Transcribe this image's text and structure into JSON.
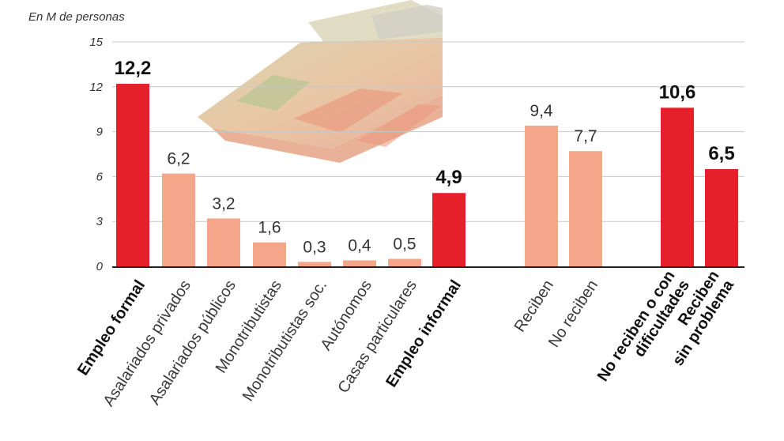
{
  "colors": {
    "highlight": "#e5202a",
    "normal": "#f4a58a",
    "grid": "#c8c8c8",
    "axis": "#222222",
    "text": "#333333"
  },
  "chart_data": {
    "type": "bar",
    "ylabel": "En M de personas",
    "ylim": [
      0,
      15
    ],
    "yticks": [
      "15",
      "12",
      "9",
      "6",
      "3",
      "0"
    ],
    "grid": true,
    "background_image": "banknotes",
    "bars": [
      {
        "category": [
          "Empleo formal"
        ],
        "value": 12.2,
        "label": "12,2",
        "highlight": true
      },
      {
        "category": [
          "Asalariados privados"
        ],
        "value": 6.2,
        "label": "6,2",
        "highlight": false
      },
      {
        "category": [
          "Asalariados públicos"
        ],
        "value": 3.2,
        "label": "3,2",
        "highlight": false
      },
      {
        "category": [
          "Monotributistas"
        ],
        "value": 1.6,
        "label": "1,6",
        "highlight": false
      },
      {
        "category": [
          "Monotributistas soc."
        ],
        "value": 0.3,
        "label": "0,3",
        "highlight": false
      },
      {
        "category": [
          "Autónomos"
        ],
        "value": 0.4,
        "label": "0,4",
        "highlight": false
      },
      {
        "category": [
          "Casas particulares"
        ],
        "value": 0.5,
        "label": "0,5",
        "highlight": false
      },
      {
        "category": [
          "Empleo informal"
        ],
        "value": 4.9,
        "label": "4,9",
        "highlight": true
      },
      {
        "category": [
          "Reciben"
        ],
        "value": 9.4,
        "label": "9,4",
        "highlight": false
      },
      {
        "category": [
          "No reciben"
        ],
        "value": 7.7,
        "label": "7,7",
        "highlight": false
      },
      {
        "category": [
          "No reciben o con",
          "dificultades"
        ],
        "value": 10.6,
        "label": "10,6",
        "highlight": true
      },
      {
        "category": [
          "Reciben",
          "sin problema"
        ],
        "value": 6.5,
        "label": "6,5",
        "highlight": true
      }
    ]
  }
}
